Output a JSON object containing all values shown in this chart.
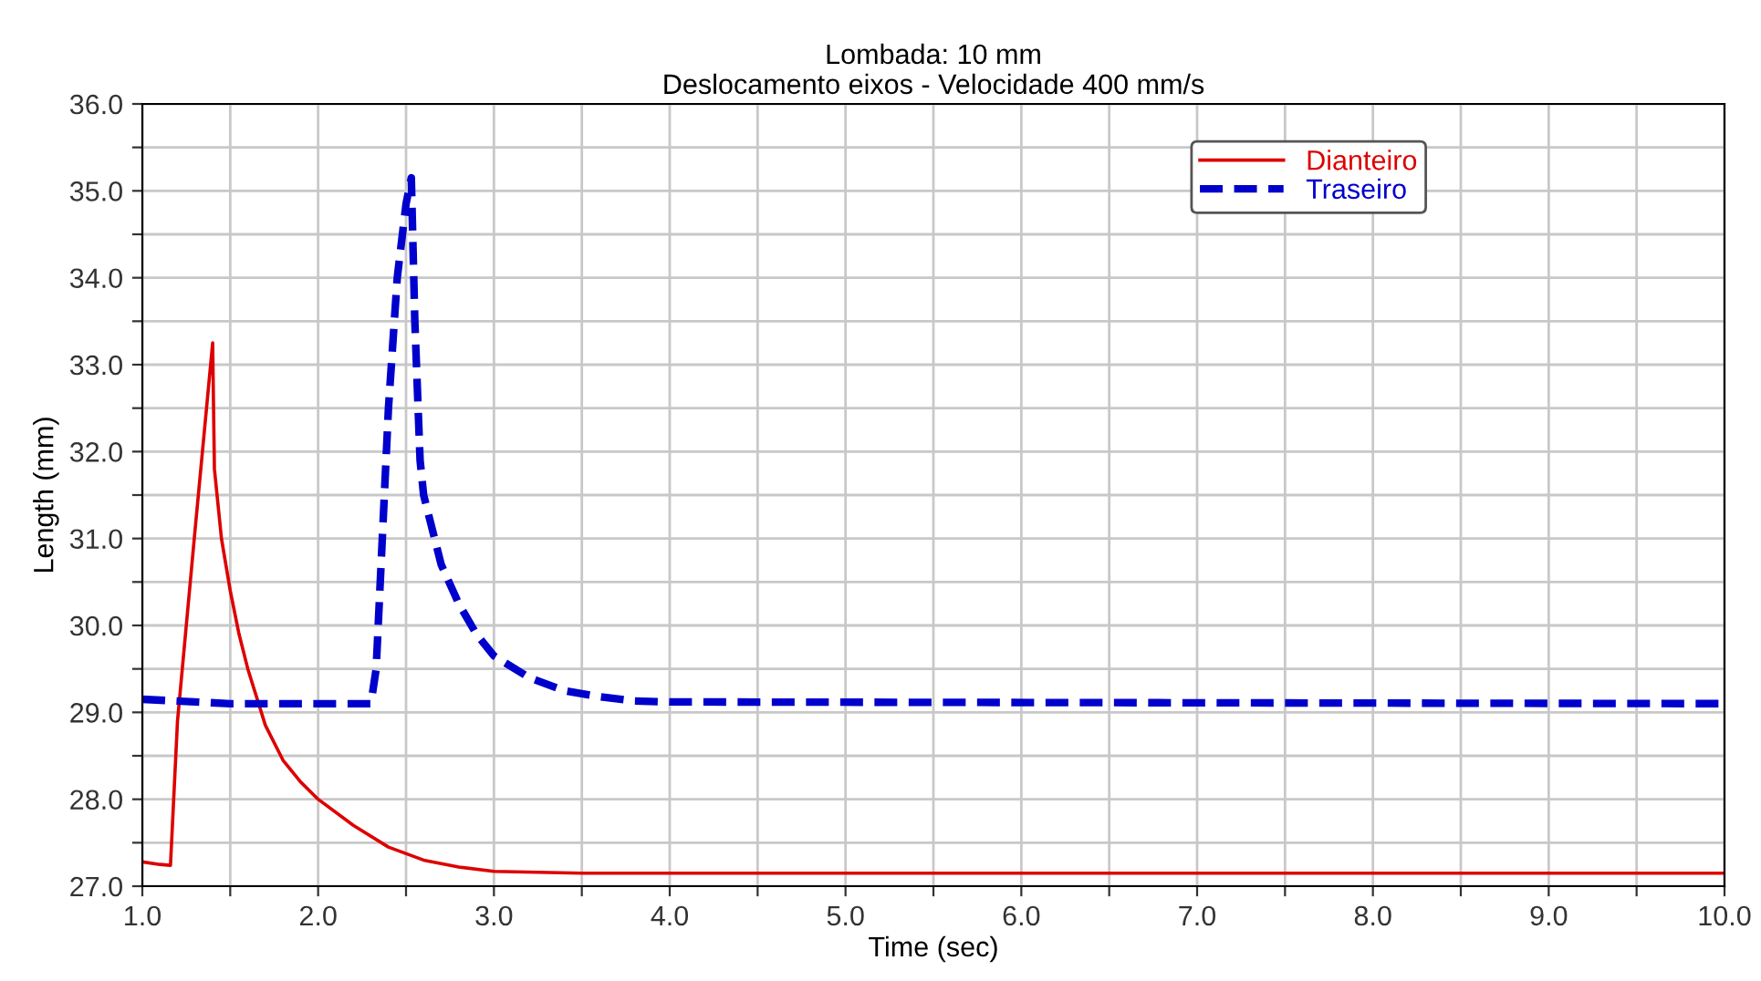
{
  "chart_data": {
    "type": "line",
    "title": "Lombada: 10 mm",
    "subtitle": "Deslocamento eixos - Velocidade 400 mm/s",
    "xlabel": "Time (sec)",
    "ylabel": "Length (mm)",
    "series": [
      {
        "name": "Dianteiro",
        "color": "#dd0000",
        "line_style": "solid",
        "x": [
          1.0,
          1.1,
          1.16,
          1.2,
          1.3,
          1.4,
          1.41,
          1.45,
          1.5,
          1.55,
          1.6,
          1.7,
          1.8,
          1.9,
          2.0,
          2.2,
          2.4,
          2.6,
          2.8,
          3.0,
          3.5,
          4.0,
          10.0
        ],
        "values": [
          27.28,
          27.25,
          27.24,
          28.9,
          31.1,
          33.25,
          31.8,
          31.0,
          30.4,
          29.9,
          29.5,
          28.85,
          28.45,
          28.2,
          28.0,
          27.7,
          27.45,
          27.3,
          27.22,
          27.17,
          27.15,
          27.15,
          27.15
        ]
      },
      {
        "name": "Traseiro",
        "color": "#0000cc",
        "line_style": "dashed",
        "x": [
          1.0,
          1.5,
          2.0,
          2.3,
          2.33,
          2.4,
          2.45,
          2.5,
          2.53,
          2.55,
          2.58,
          2.6,
          2.7,
          2.8,
          2.9,
          3.0,
          3.2,
          3.4,
          3.6,
          3.8,
          4.0,
          10.0
        ],
        "values": [
          29.15,
          29.1,
          29.1,
          29.1,
          29.5,
          32.5,
          34.0,
          34.85,
          35.15,
          33.5,
          31.9,
          31.5,
          30.7,
          30.25,
          29.9,
          29.65,
          29.4,
          29.25,
          29.18,
          29.13,
          29.12,
          29.1
        ]
      }
    ],
    "xlim": [
      1.0,
      10.0
    ],
    "ylim": [
      27.0,
      36.0
    ],
    "xticks": [
      {
        "value": 1.0,
        "label": "1.0"
      },
      {
        "value": 1.5,
        "label": null
      },
      {
        "value": 2.0,
        "label": "2.0"
      },
      {
        "value": 2.5,
        "label": null
      },
      {
        "value": 3.0,
        "label": "3.0"
      },
      {
        "value": 3.5,
        "label": null
      },
      {
        "value": 4.0,
        "label": "4.0"
      },
      {
        "value": 4.5,
        "label": null
      },
      {
        "value": 5.0,
        "label": "5.0"
      },
      {
        "value": 5.5,
        "label": null
      },
      {
        "value": 6.0,
        "label": "6.0"
      },
      {
        "value": 6.5,
        "label": null
      },
      {
        "value": 7.0,
        "label": "7.0"
      },
      {
        "value": 7.5,
        "label": null
      },
      {
        "value": 8.0,
        "label": "8.0"
      },
      {
        "value": 8.5,
        "label": null
      },
      {
        "value": 9.0,
        "label": "9.0"
      },
      {
        "value": 9.5,
        "label": null
      },
      {
        "value": 10.0,
        "label": "10.0"
      }
    ],
    "yticks": [
      {
        "value": 27.0,
        "label": "27.0"
      },
      {
        "value": 27.5,
        "label": null
      },
      {
        "value": 28.0,
        "label": "28.0"
      },
      {
        "value": 28.5,
        "label": null
      },
      {
        "value": 29.0,
        "label": "29.0"
      },
      {
        "value": 29.5,
        "label": null
      },
      {
        "value": 30.0,
        "label": "30.0"
      },
      {
        "value": 30.5,
        "label": null
      },
      {
        "value": 31.0,
        "label": "31.0"
      },
      {
        "value": 31.5,
        "label": null
      },
      {
        "value": 32.0,
        "label": "32.0"
      },
      {
        "value": 32.5,
        "label": null
      },
      {
        "value": 33.0,
        "label": "33.0"
      },
      {
        "value": 33.5,
        "label": null
      },
      {
        "value": 34.0,
        "label": "34.0"
      },
      {
        "value": 34.5,
        "label": null
      },
      {
        "value": 35.0,
        "label": "35.0"
      },
      {
        "value": 35.5,
        "label": null
      },
      {
        "value": 36.0,
        "label": "36.0"
      }
    ],
    "grid": true,
    "legend": "top right"
  }
}
